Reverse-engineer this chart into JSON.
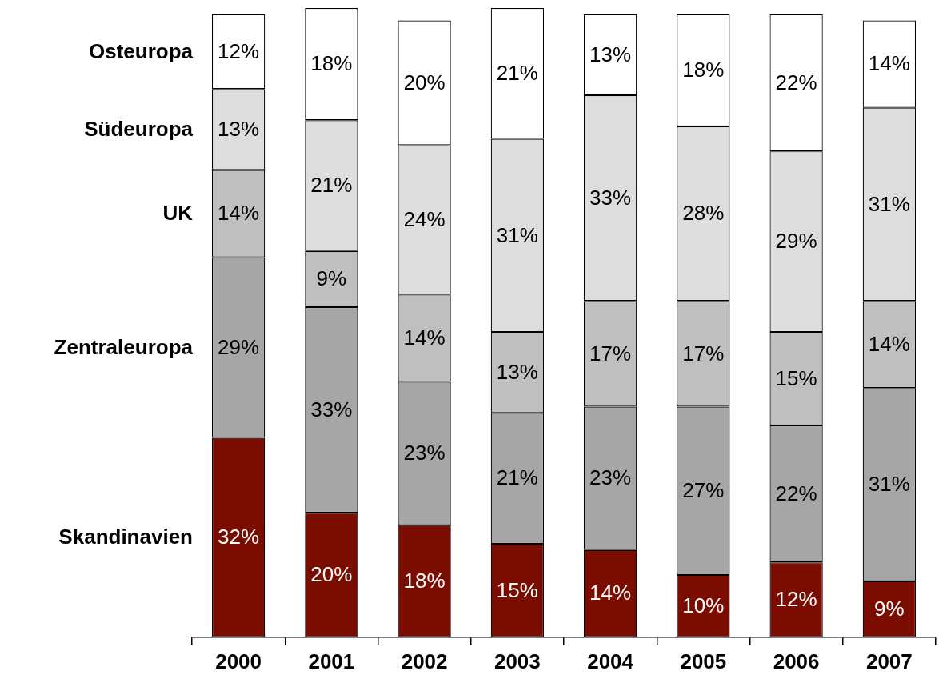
{
  "chart_data": {
    "type": "bar",
    "stacked": true,
    "legend": false,
    "grid": false,
    "categories": [
      "2000",
      "2001",
      "2002",
      "2003",
      "2004",
      "2005",
      "2006",
      "2007"
    ],
    "series": [
      {
        "name": "Skandinavien",
        "color": "#7b0c00",
        "values": [
          32,
          20,
          18,
          15,
          14,
          10,
          12,
          9
        ],
        "value_labels": [
          "32%",
          "20%",
          "18%",
          "15%",
          "14%",
          "10%",
          "12%",
          "9%"
        ]
      },
      {
        "name": "Zentraleuropa",
        "color": "#a6a6a6",
        "values": [
          29,
          33,
          23,
          21,
          23,
          27,
          22,
          31
        ],
        "value_labels": [
          "29%",
          "33%",
          "23%",
          "21%",
          "23%",
          "27%",
          "22%",
          "31%"
        ]
      },
      {
        "name": "UK",
        "color": "#bfbfbf",
        "values": [
          14,
          9,
          14,
          13,
          17,
          17,
          15,
          14
        ],
        "value_labels": [
          "14%",
          "9%",
          "14%",
          "13%",
          "17%",
          "17%",
          "15%",
          "14%"
        ]
      },
      {
        "name": "Südeuropa",
        "color": "#dddddd",
        "values": [
          13,
          21,
          24,
          31,
          33,
          28,
          29,
          31
        ],
        "value_labels": [
          "13%",
          "21%",
          "24%",
          "31%",
          "33%",
          "28%",
          "29%",
          "31%"
        ]
      },
      {
        "name": "Osteuropa",
        "color": "#ffffff",
        "values": [
          12,
          18,
          20,
          21,
          13,
          18,
          22,
          14
        ],
        "value_labels": [
          "12%",
          "18%",
          "20%",
          "21%",
          "13%",
          "18%",
          "22%",
          "14%"
        ]
      }
    ]
  }
}
